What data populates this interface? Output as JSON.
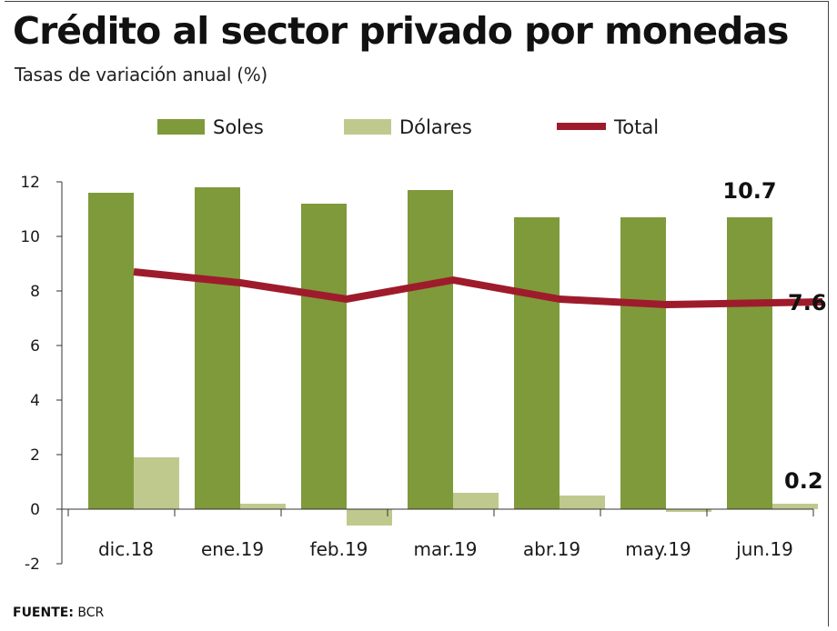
{
  "chart_data": {
    "type": "bar",
    "title": "Crédito al sector privado por monedas",
    "subtitle": "Tasas de variación anual (%)",
    "categories": [
      "dic.18",
      "ene.19",
      "feb.19",
      "mar.19",
      "abr.19",
      "may.19",
      "jun.19"
    ],
    "series": [
      {
        "name": "Soles",
        "type": "bar",
        "color": "#7f9a3a",
        "values": [
          11.6,
          11.8,
          11.2,
          11.7,
          10.7,
          10.7,
          10.7
        ]
      },
      {
        "name": "Dólares",
        "type": "bar",
        "color": "#bfc98e",
        "values": [
          1.9,
          0.2,
          -0.6,
          0.6,
          0.5,
          -0.1,
          0.2
        ]
      },
      {
        "name": "Total",
        "type": "line",
        "color": "#9e1b2c",
        "values": [
          8.7,
          8.3,
          7.7,
          8.4,
          7.7,
          7.5,
          7.6
        ]
      }
    ],
    "ylim": [
      -2,
      12
    ],
    "yticks": [
      -2,
      0,
      2,
      4,
      6,
      8,
      10,
      12
    ],
    "annotations": [
      {
        "series": "Soles",
        "category": "jun.19",
        "text": "10.7"
      },
      {
        "series": "Total",
        "category": "jun.19",
        "text": "7.6"
      },
      {
        "series": "Dólares",
        "category": "jun.19",
        "text": "0.2"
      }
    ],
    "legend": "top"
  },
  "source": {
    "label": "FUENTE:",
    "value": "BCR"
  }
}
